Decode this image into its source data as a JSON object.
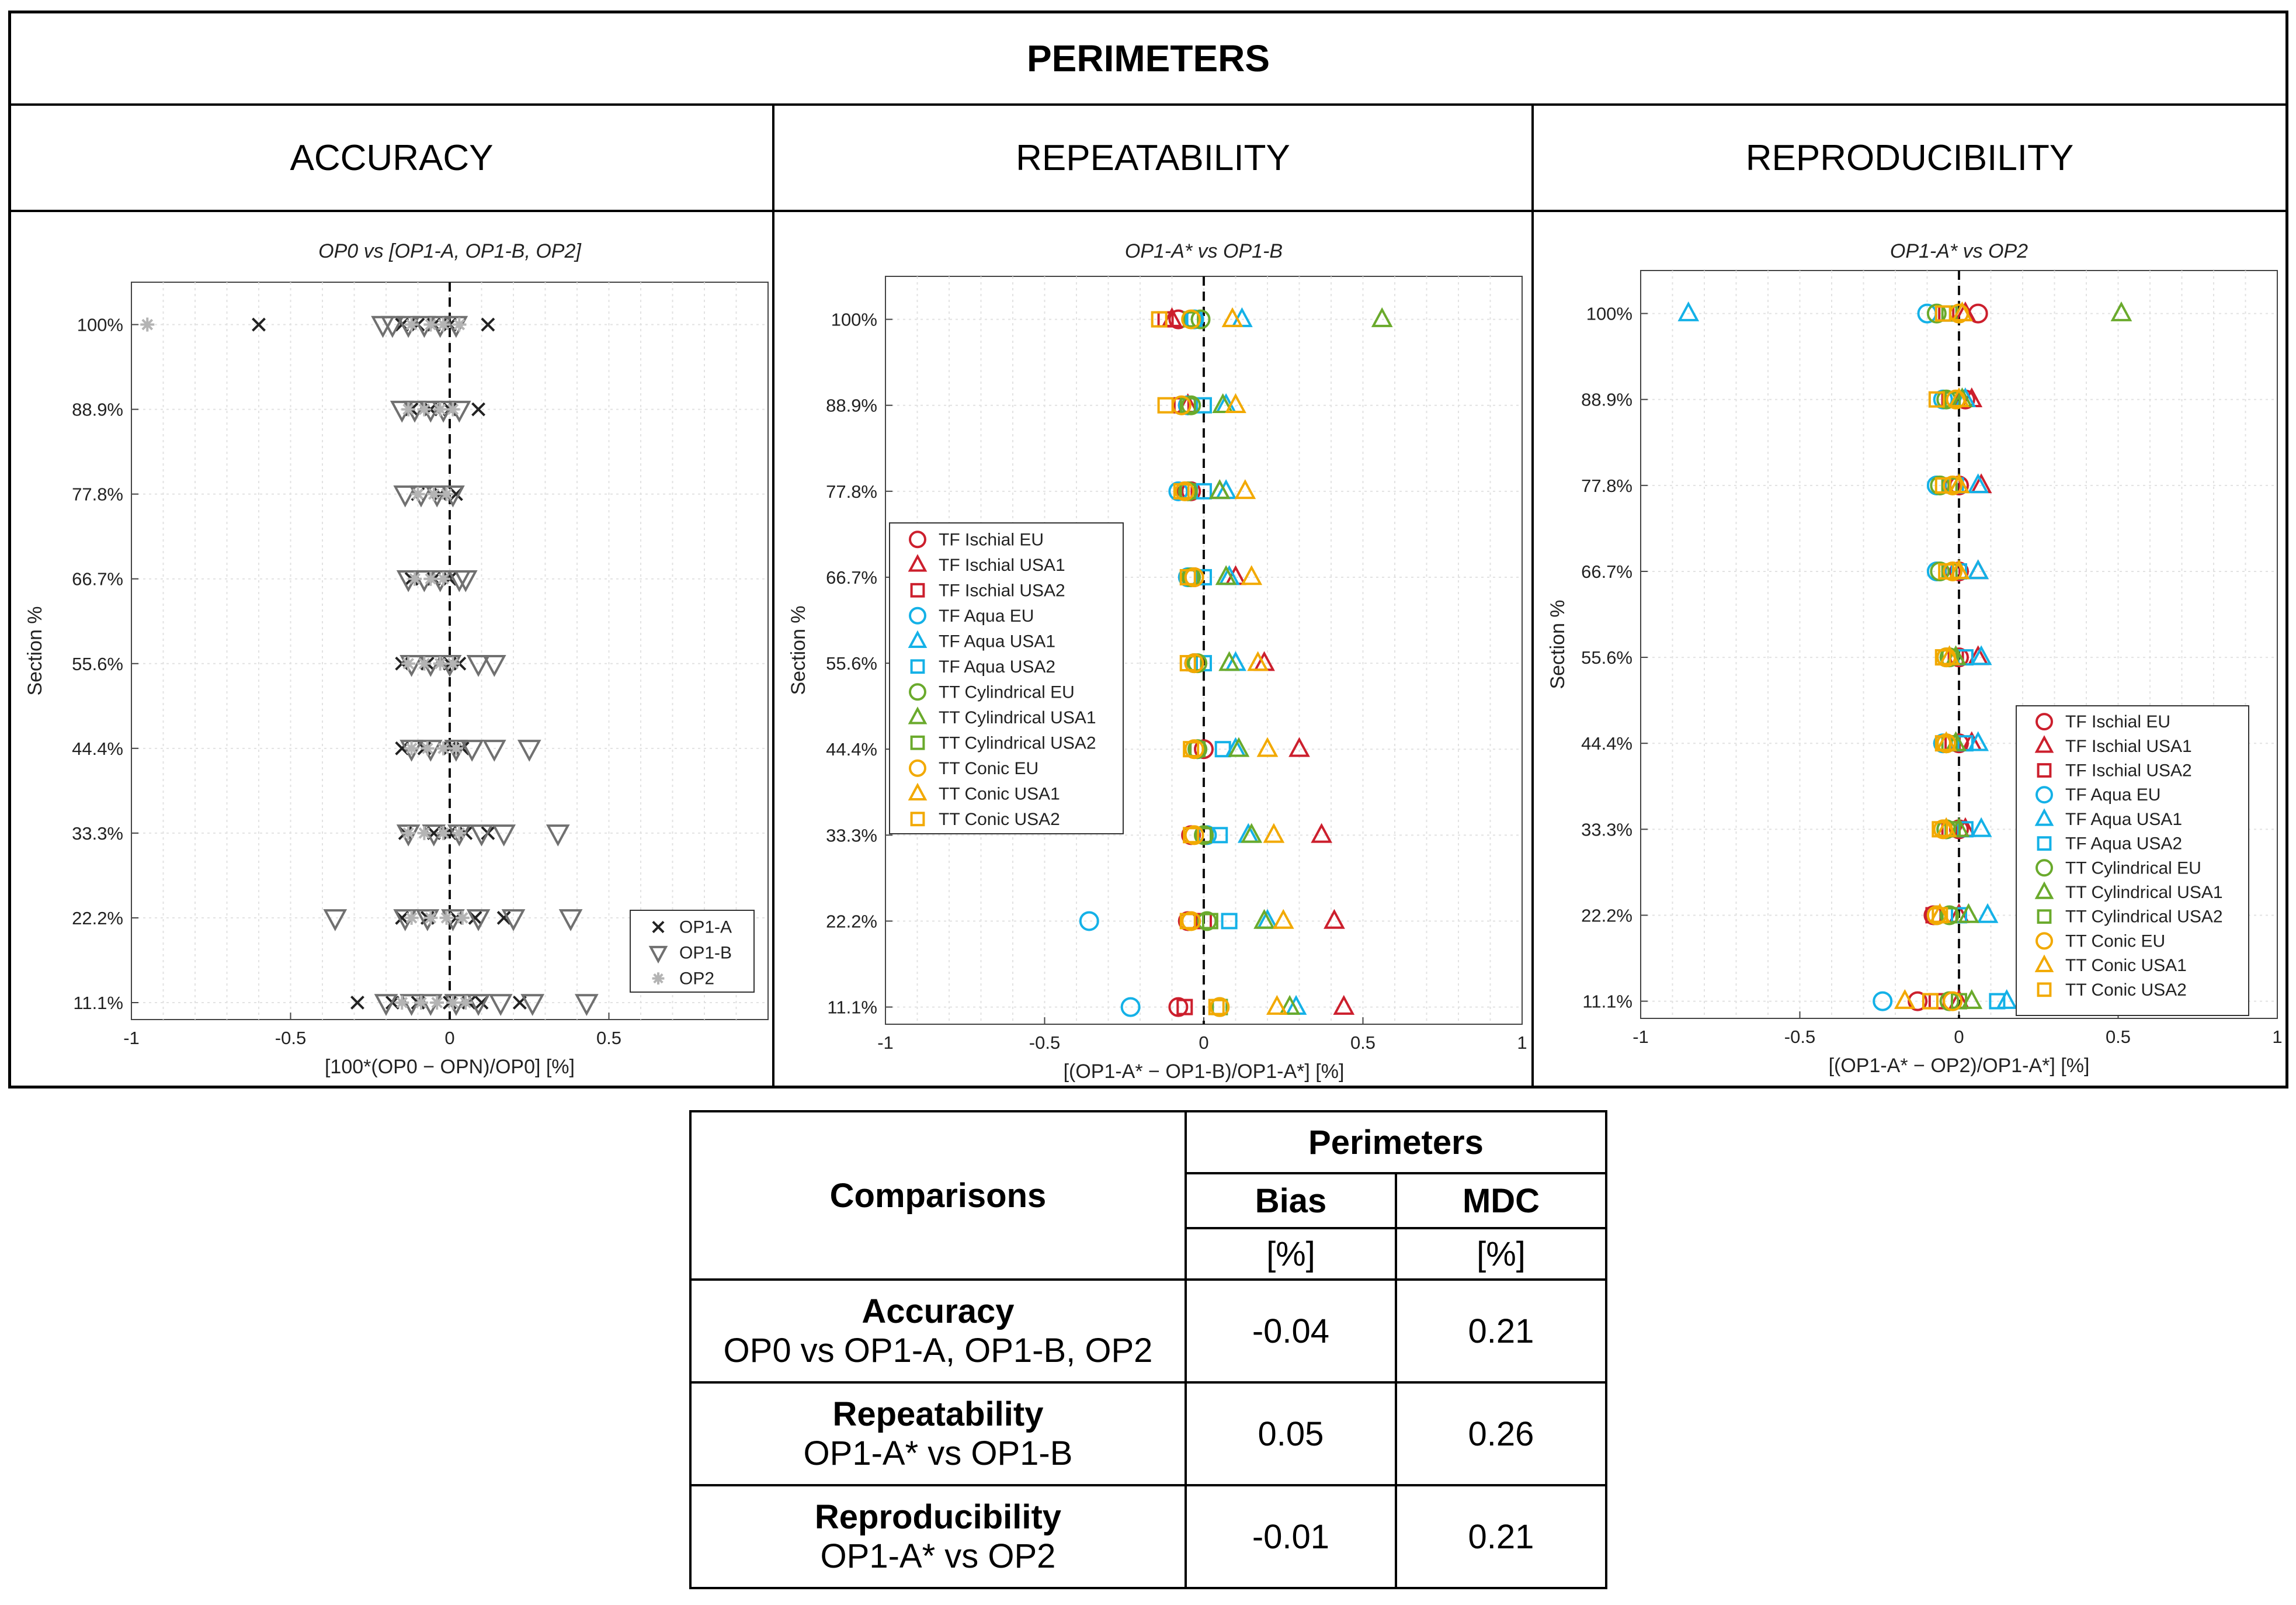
{
  "figure_title": "PERIMETERS",
  "columns": [
    "ACCURACY",
    "REPEATABILITY",
    "REPRODUCIBILITY"
  ],
  "colors": {
    "red": "#cc1f2d",
    "cyan": "#14b1e7",
    "green": "#6aaa2c",
    "orange": "#f2a900",
    "black": "#222222",
    "gray": "#707070",
    "lightgray": "#b4b4b4"
  },
  "chart_data": [
    {
      "type": "scatter",
      "title": "OP0 vs [OP1-A, OP1-B, OP2]",
      "xlabel": "[100*(OP0 − OPN)/OP0] [%]",
      "ylabel": "Section %",
      "xlim": [
        -1,
        1
      ],
      "xticks": [
        "-1",
        "-0.5",
        "0",
        "0.5"
      ],
      "xtick_values": [
        -1,
        -0.5,
        0,
        0.5
      ],
      "categories": [
        "100%",
        "88.9%",
        "77.8%",
        "66.7%",
        "55.6%",
        "44.4%",
        "33.3%",
        "22.2%",
        "11.1%"
      ],
      "grid": true,
      "legend_position": "bottom-right",
      "series": [
        {
          "name": "OP1-A",
          "marker": "x",
          "color": "#222222",
          "points": [
            [
              -0.6,
              0
            ],
            [
              -0.15,
              0
            ],
            [
              -0.1,
              0
            ],
            [
              -0.05,
              0
            ],
            [
              0.0,
              0
            ],
            [
              0.12,
              0
            ],
            [
              -0.12,
              1
            ],
            [
              -0.06,
              1
            ],
            [
              0.0,
              1
            ],
            [
              0.09,
              1
            ],
            [
              -0.1,
              2
            ],
            [
              -0.03,
              2
            ],
            [
              0.02,
              2
            ],
            [
              -0.12,
              3
            ],
            [
              -0.05,
              3
            ],
            [
              0.0,
              3
            ],
            [
              -0.15,
              4
            ],
            [
              -0.07,
              4
            ],
            [
              0.0,
              4
            ],
            [
              0.03,
              4
            ],
            [
              -0.15,
              5
            ],
            [
              -0.08,
              5
            ],
            [
              0.0,
              5
            ],
            [
              0.04,
              5
            ],
            [
              -0.14,
              6
            ],
            [
              -0.05,
              6
            ],
            [
              0.0,
              6
            ],
            [
              0.05,
              6
            ],
            [
              0.12,
              6
            ],
            [
              -0.15,
              7
            ],
            [
              -0.07,
              7
            ],
            [
              0.02,
              7
            ],
            [
              0.08,
              7
            ],
            [
              0.17,
              7
            ],
            [
              -0.29,
              8
            ],
            [
              -0.18,
              8
            ],
            [
              -0.1,
              8
            ],
            [
              0.0,
              8
            ],
            [
              0.06,
              8
            ],
            [
              0.1,
              8
            ],
            [
              0.22,
              8
            ]
          ]
        },
        {
          "name": "OP1-B",
          "marker": "triangle-down",
          "color": "#707070",
          "points": [
            [
              -0.21,
              0
            ],
            [
              -0.18,
              0
            ],
            [
              -0.13,
              0
            ],
            [
              -0.08,
              0
            ],
            [
              -0.03,
              0
            ],
            [
              0.02,
              0
            ],
            [
              -0.15,
              1
            ],
            [
              -0.11,
              1
            ],
            [
              -0.06,
              1
            ],
            [
              -0.02,
              1
            ],
            [
              0.03,
              1
            ],
            [
              -0.14,
              2
            ],
            [
              -0.09,
              2
            ],
            [
              -0.04,
              2
            ],
            [
              0.01,
              2
            ],
            [
              -0.13,
              3
            ],
            [
              -0.08,
              3
            ],
            [
              -0.03,
              3
            ],
            [
              0.03,
              3
            ],
            [
              0.05,
              3
            ],
            [
              -0.12,
              4
            ],
            [
              -0.06,
              4
            ],
            [
              0.0,
              4
            ],
            [
              0.09,
              4
            ],
            [
              0.14,
              4
            ],
            [
              -0.12,
              5
            ],
            [
              -0.06,
              5
            ],
            [
              0.02,
              5
            ],
            [
              0.07,
              5
            ],
            [
              0.14,
              5
            ],
            [
              0.25,
              5
            ],
            [
              -0.13,
              6
            ],
            [
              -0.05,
              6
            ],
            [
              0.03,
              6
            ],
            [
              0.1,
              6
            ],
            [
              0.17,
              6
            ],
            [
              0.34,
              6
            ],
            [
              -0.36,
              7
            ],
            [
              -0.14,
              7
            ],
            [
              -0.07,
              7
            ],
            [
              0.01,
              7
            ],
            [
              0.09,
              7
            ],
            [
              0.2,
              7
            ],
            [
              0.38,
              7
            ],
            [
              -0.2,
              8
            ],
            [
              -0.12,
              8
            ],
            [
              -0.06,
              8
            ],
            [
              0.02,
              8
            ],
            [
              0.09,
              8
            ],
            [
              0.16,
              8
            ],
            [
              0.26,
              8
            ],
            [
              0.43,
              8
            ]
          ]
        },
        {
          "name": "OP2",
          "marker": "asterisk",
          "color": "#b4b4b4",
          "points": [
            [
              -0.95,
              0
            ],
            [
              -0.12,
              0
            ],
            [
              -0.06,
              0
            ],
            [
              -0.02,
              0
            ],
            [
              0.03,
              0
            ],
            [
              -0.13,
              1
            ],
            [
              -0.08,
              1
            ],
            [
              -0.03,
              1
            ],
            [
              0.01,
              1
            ],
            [
              -0.1,
              2
            ],
            [
              -0.05,
              2
            ],
            [
              -0.01,
              2
            ],
            [
              -0.11,
              3
            ],
            [
              -0.06,
              3
            ],
            [
              -0.02,
              3
            ],
            [
              -0.13,
              4
            ],
            [
              -0.08,
              4
            ],
            [
              -0.03,
              4
            ],
            [
              0.01,
              4
            ],
            [
              -0.12,
              5
            ],
            [
              -0.07,
              5
            ],
            [
              -0.02,
              5
            ],
            [
              0.02,
              5
            ],
            [
              -0.13,
              6
            ],
            [
              -0.08,
              6
            ],
            [
              -0.02,
              6
            ],
            [
              0.03,
              6
            ],
            [
              -0.12,
              7
            ],
            [
              -0.06,
              7
            ],
            [
              -0.01,
              7
            ],
            [
              0.04,
              7
            ],
            [
              -0.15,
              8
            ],
            [
              -0.09,
              8
            ],
            [
              -0.04,
              8
            ],
            [
              0.01,
              8
            ],
            [
              0.05,
              8
            ]
          ]
        }
      ]
    },
    {
      "type": "scatter",
      "title": "OP1-A* vs OP1-B",
      "xlabel": "[(OP1-A* − OP1-B)/OP1-A*] [%]",
      "ylabel": "Section %",
      "xlim": [
        -1,
        1
      ],
      "xticks": [
        "-1",
        "-0.5",
        "0",
        "0.5",
        "1"
      ],
      "xtick_values": [
        -1,
        -0.5,
        0,
        0.5,
        1
      ],
      "categories": [
        "100%",
        "88.9%",
        "77.8%",
        "66.7%",
        "55.6%",
        "44.4%",
        "33.3%",
        "22.2%",
        "11.1%"
      ],
      "grid": true,
      "legend_position": "middle-left",
      "series": [
        {
          "name": "TF Ischial EU",
          "marker": "circle",
          "color": "#cc1f2d",
          "values": [
            -0.08,
            -0.05,
            -0.04,
            -0.03,
            -0.03,
            0.0,
            -0.04,
            -0.05,
            -0.08
          ]
        },
        {
          "name": "TF Ischial USA1",
          "marker": "triangle",
          "color": "#cc1f2d",
          "values": [
            -0.1,
            -0.05,
            0.05,
            0.1,
            0.19,
            0.3,
            0.37,
            0.41,
            0.44
          ]
        },
        {
          "name": "TF Ischial USA2",
          "marker": "square",
          "color": "#cc1f2d",
          "values": [
            -0.12,
            -0.07,
            -0.06,
            -0.04,
            -0.03,
            -0.02,
            0.0,
            0.0,
            -0.06
          ]
        },
        {
          "name": "TF Aqua EU",
          "marker": "circle",
          "color": "#14b1e7",
          "values": [
            -0.03,
            -0.05,
            -0.08,
            -0.05,
            -0.03,
            -0.02,
            0.01,
            -0.36,
            -0.23
          ]
        },
        {
          "name": "TF Aqua USA1",
          "marker": "triangle",
          "color": "#14b1e7",
          "values": [
            0.12,
            0.07,
            0.07,
            0.08,
            0.1,
            0.1,
            0.14,
            0.2,
            0.29
          ]
        },
        {
          "name": "TF Aqua USA2",
          "marker": "square",
          "color": "#14b1e7",
          "values": [
            -0.03,
            0.0,
            0.0,
            0.0,
            0.0,
            0.06,
            0.05,
            0.08,
            0.05
          ]
        },
        {
          "name": "TT Cylindrical EU",
          "marker": "circle",
          "color": "#6aaa2c",
          "values": [
            -0.01,
            -0.04,
            -0.05,
            -0.04,
            -0.02,
            -0.02,
            0.0,
            0.01,
            0.05
          ]
        },
        {
          "name": "TT Cylindrical USA1",
          "marker": "triangle",
          "color": "#6aaa2c",
          "values": [
            0.56,
            0.06,
            0.05,
            0.07,
            0.08,
            0.11,
            0.15,
            0.19,
            0.27
          ]
        },
        {
          "name": "TT Cylindrical USA2",
          "marker": "square",
          "color": "#6aaa2c",
          "values": [
            -0.04,
            -0.05,
            -0.05,
            -0.04,
            -0.03,
            -0.02,
            0.0,
            0.02,
            0.05
          ]
        },
        {
          "name": "TT Conic EU",
          "marker": "circle",
          "color": "#f2a900",
          "values": [
            -0.04,
            -0.07,
            -0.06,
            -0.03,
            -0.03,
            -0.03,
            -0.03,
            -0.04,
            0.05
          ]
        },
        {
          "name": "TT Conic USA1",
          "marker": "triangle",
          "color": "#f2a900",
          "values": [
            0.09,
            0.1,
            0.13,
            0.15,
            0.17,
            0.2,
            0.22,
            0.25,
            0.23
          ]
        },
        {
          "name": "TT Conic USA2",
          "marker": "square",
          "color": "#f2a900",
          "values": [
            -0.14,
            -0.12,
            -0.07,
            -0.05,
            -0.05,
            -0.04,
            -0.04,
            -0.05,
            0.04
          ]
        }
      ]
    },
    {
      "type": "scatter",
      "title": "OP1-A* vs OP2",
      "xlabel": "[(OP1-A* − OP2)/OP1-A*] [%]",
      "ylabel": "Section %",
      "xlim": [
        -1,
        1
      ],
      "xticks": [
        "-1",
        "-0.5",
        "0",
        "0.5",
        "1"
      ],
      "xtick_values": [
        -1,
        -0.5,
        0,
        0.5,
        1
      ],
      "categories": [
        "100%",
        "88.9%",
        "77.8%",
        "66.7%",
        "55.6%",
        "44.4%",
        "33.3%",
        "22.2%",
        "11.1%"
      ],
      "grid": true,
      "legend_position": "bottom-right",
      "series": [
        {
          "name": "TF Ischial EU",
          "marker": "circle",
          "color": "#cc1f2d",
          "values": [
            0.06,
            0.02,
            0.0,
            0.0,
            0.0,
            0.0,
            0.0,
            -0.08,
            -0.13
          ]
        },
        {
          "name": "TF Ischial USA1",
          "marker": "triangle",
          "color": "#cc1f2d",
          "values": [
            0.02,
            0.04,
            0.07,
            0.06,
            0.06,
            0.04,
            0.02,
            0.0,
            0.0
          ]
        },
        {
          "name": "TF Ischial USA2",
          "marker": "square",
          "color": "#cc1f2d",
          "values": [
            -0.04,
            -0.03,
            -0.02,
            -0.02,
            -0.01,
            -0.02,
            -0.03,
            -0.08,
            -0.07
          ]
        },
        {
          "name": "TF Aqua EU",
          "marker": "circle",
          "color": "#14b1e7",
          "values": [
            -0.1,
            -0.05,
            -0.07,
            -0.07,
            -0.04,
            -0.05,
            -0.04,
            -0.07,
            -0.24
          ]
        },
        {
          "name": "TF Aqua USA1",
          "marker": "triangle",
          "color": "#14b1e7",
          "values": [
            -0.85,
            0.02,
            0.06,
            0.06,
            0.07,
            0.06,
            0.07,
            0.09,
            0.15
          ]
        },
        {
          "name": "TF Aqua USA2",
          "marker": "square",
          "color": "#14b1e7",
          "values": [
            -0.05,
            -0.02,
            -0.01,
            0.0,
            0.02,
            0.02,
            0.02,
            0.0,
            0.12
          ]
        },
        {
          "name": "TT Cylindrical EU",
          "marker": "circle",
          "color": "#6aaa2c",
          "values": [
            -0.07,
            -0.04,
            -0.06,
            -0.06,
            -0.03,
            -0.04,
            -0.04,
            -0.03,
            -0.03
          ]
        },
        {
          "name": "TT Cylindrical USA1",
          "marker": "triangle",
          "color": "#6aaa2c",
          "values": [
            0.51,
            0.01,
            0.0,
            0.0,
            -0.01,
            -0.01,
            0.0,
            0.03,
            0.04
          ]
        },
        {
          "name": "TT Cylindrical USA2",
          "marker": "square",
          "color": "#6aaa2c",
          "values": [
            -0.03,
            -0.02,
            -0.03,
            -0.03,
            -0.03,
            -0.03,
            -0.02,
            -0.03,
            0.0
          ]
        },
        {
          "name": "TT Conic EU",
          "marker": "circle",
          "color": "#f2a900",
          "values": [
            0.0,
            -0.01,
            -0.02,
            -0.02,
            -0.04,
            -0.04,
            -0.05,
            -0.07,
            -0.02
          ]
        },
        {
          "name": "TT Conic USA1",
          "marker": "triangle",
          "color": "#f2a900",
          "values": [
            0.01,
            0.0,
            0.0,
            0.0,
            -0.03,
            -0.04,
            -0.04,
            -0.06,
            -0.17
          ]
        },
        {
          "name": "TT Conic USA2",
          "marker": "square",
          "color": "#f2a900",
          "values": [
            -0.05,
            -0.07,
            -0.05,
            -0.04,
            -0.05,
            -0.05,
            -0.06,
            -0.06,
            -0.09
          ]
        }
      ]
    }
  ],
  "table": {
    "comparisons_header": "Comparisons",
    "group_header": "Perimeters",
    "bias_header": "Bias",
    "mdc_header": "MDC",
    "bias_unit": "[%]",
    "mdc_unit": "[%]",
    "rows": [
      {
        "name": "Accuracy",
        "desc": "OP0 vs OP1-A, OP1-B, OP2",
        "bias": "-0.04",
        "mdc": "0.21"
      },
      {
        "name": "Repeatability",
        "desc": "OP1-A* vs OP1-B",
        "bias": "0.05",
        "mdc": "0.26"
      },
      {
        "name": "Reproducibility",
        "desc": "OP1-A* vs OP2",
        "bias": "-0.01",
        "mdc": "0.21"
      }
    ]
  }
}
